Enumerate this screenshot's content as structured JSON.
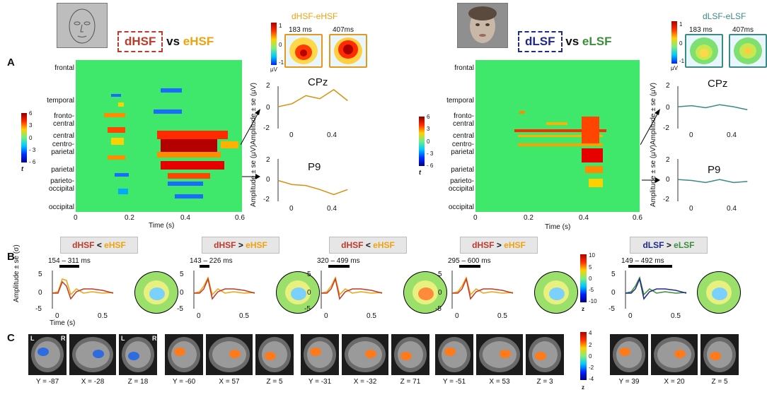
{
  "panels": {
    "a": "A",
    "b": "B",
    "c": "C"
  },
  "left": {
    "title": {
      "d": "dHSF",
      "vs": "vs",
      "e": "eHSF"
    },
    "topo_title": "dHSF-eHSF",
    "topo_times": [
      "183 ms",
      "407ms"
    ],
    "channels": [
      "CPz",
      "P9"
    ],
    "regions": [
      "frontal",
      "temporal",
      "fronto-\ncentral",
      "central",
      "centro-\nparietal",
      "parietal",
      "parieto-\noccipital",
      "occipital"
    ],
    "xticks": [
      "0",
      "0.2",
      "0.4",
      "0.6"
    ],
    "xlabel": "Time (s)",
    "erp_yticks": [
      "2",
      "0",
      "-2"
    ],
    "erp_xticks": [
      "0",
      "0.4"
    ],
    "erp_ylabel": "Amplitude ± se (μV)",
    "colorbar": {
      "ticks": [
        "6",
        "3",
        "0",
        "- 3",
        "- 6"
      ],
      "label": "t"
    },
    "topo_cbar": {
      "ticks": [
        "1",
        "0",
        "-1"
      ],
      "unit": "μV"
    }
  },
  "right": {
    "title": {
      "d": "dLSF",
      "vs": "vs",
      "e": "eLSF"
    },
    "topo_title": "dLSF-eLSF",
    "topo_times": [
      "183 ms",
      "407ms"
    ],
    "channels": [
      "CPz",
      "P9"
    ],
    "regions": [
      "frontal",
      "temporal",
      "fronto-\ncentral",
      "central",
      "centro-\nparietal",
      "parietal",
      "parieto-\noccipital",
      "occipital"
    ],
    "xticks": [
      "0",
      "0.2",
      "0.4",
      "0.6"
    ],
    "xlabel": "Time (s)",
    "erp_yticks": [
      "2",
      "0",
      "-2"
    ],
    "erp_xticks": [
      "0",
      "0.4"
    ],
    "erp_ylabel": "Amplitude ± se (μV)",
    "colorbar": {
      "ticks": [
        "6",
        "3",
        "0",
        "- 3",
        "- 6"
      ],
      "label": "t"
    },
    "topo_cbar": {
      "ticks": [
        "1",
        "0",
        "-1"
      ],
      "unit": "μV"
    }
  },
  "b_panels": [
    {
      "a": "dHSF",
      "op": "<",
      "b": "eHSF",
      "window": "154 – 311 ms"
    },
    {
      "a": "dHSF",
      "op": ">",
      "b": "eHSF",
      "window": "143 – 226 ms"
    },
    {
      "a": "dHSF",
      "op": "<",
      "b": "eHSF",
      "window": "320 – 499 ms"
    },
    {
      "a": "dHSF",
      "op": ">",
      "b": "eHSF",
      "window": "295 – 600 ms"
    },
    {
      "a": "dLSF",
      "op": ">",
      "b": "eLSF",
      "window": "149 – 492 ms"
    }
  ],
  "b_axes": {
    "ylabel": "Amplitude ± se (σ)",
    "yticks": [
      "5",
      "0",
      "-5"
    ],
    "xticks": [
      "0",
      "0.5"
    ],
    "xlabel": "Time (s)"
  },
  "b_cbar": {
    "ticks": [
      "10",
      "5",
      "0",
      "-5",
      "-10"
    ],
    "label": "z"
  },
  "c_cbar": {
    "ticks": [
      "4",
      "2",
      "0",
      "-2",
      "-4"
    ],
    "label": "z"
  },
  "c_coords": [
    [
      "Y = -87",
      "X = -28",
      "Z = 18"
    ],
    [
      "Y = -60",
      "X = 57",
      "Z = 5"
    ],
    [
      "Y = -31",
      "X = -32",
      "Z = 71"
    ],
    [
      "Y = -51",
      "X = 53",
      "Z = 3"
    ],
    [
      "Y = 39",
      "X = 20",
      "Z = 5"
    ]
  ],
  "c_lr": {
    "l": "L",
    "r": "R"
  },
  "colors": {
    "dhsf": "#c0392b",
    "ehsf": "#f2a20d",
    "dlsf": "#1f2a8a",
    "elsf": "#3a8f3a",
    "heat_bg": "#3fe86a",
    "erp_hsf": "#d9900f",
    "erp_lsf": "#3a8a86"
  },
  "chart_data": [
    {
      "type": "heatmap",
      "title": "dHSF vs eHSF",
      "xlabel": "Time (s)",
      "xlim": [
        0,
        0.6
      ],
      "colorbar_range": [
        -6,
        6
      ],
      "label": "t"
    },
    {
      "type": "line",
      "title": "CPz dHSF-eHSF",
      "x": [
        0,
        0.1,
        0.2,
        0.3,
        0.4,
        0.5
      ],
      "values": [
        0.1,
        0.4,
        1.2,
        0.9,
        1.8,
        0.7
      ],
      "ylabel": "Amplitude ± se (μV)",
      "ylim": [
        -2,
        2
      ]
    },
    {
      "type": "line",
      "title": "P9 dHSF-eHSF",
      "x": [
        0,
        0.1,
        0.2,
        0.3,
        0.4,
        0.5
      ],
      "values": [
        0.0,
        -0.4,
        -0.5,
        -0.9,
        -1.4,
        -0.9
      ],
      "ylabel": "Amplitude ± se (μV)",
      "ylim": [
        -2,
        2
      ]
    },
    {
      "type": "heatmap",
      "title": "dLSF vs eLSF",
      "xlabel": "Time (s)",
      "xlim": [
        0,
        0.6
      ],
      "colorbar_range": [
        -6,
        6
      ],
      "label": "t"
    },
    {
      "type": "line",
      "title": "CPz dLSF-eLSF",
      "x": [
        0,
        0.1,
        0.2,
        0.3,
        0.4,
        0.5
      ],
      "values": [
        0.1,
        0.2,
        0.0,
        0.3,
        0.1,
        -0.2
      ],
      "ylabel": "Amplitude ± se (μV)",
      "ylim": [
        -2,
        2
      ]
    },
    {
      "type": "line",
      "title": "P9 dLSF-eLSF",
      "x": [
        0,
        0.1,
        0.2,
        0.3,
        0.4,
        0.5
      ],
      "values": [
        0.1,
        0.0,
        -0.2,
        0.1,
        -0.2,
        -0.1
      ],
      "ylabel": "Amplitude ± se (μV)",
      "ylim": [
        -2,
        2
      ]
    }
  ]
}
